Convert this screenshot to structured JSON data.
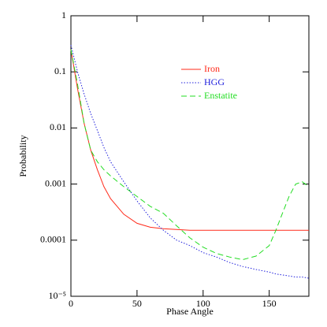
{
  "chart_data": {
    "type": "line",
    "x_label": "Phase Angle",
    "y_label": "Probability",
    "x": [
      0,
      5,
      10,
      15,
      20,
      25,
      30,
      40,
      50,
      60,
      70,
      80,
      90,
      100,
      110,
      120,
      130,
      140,
      150,
      155,
      160,
      165,
      170,
      175,
      180
    ],
    "series": [
      {
        "name": "Iron",
        "color": "#ff2a1a",
        "dash": "solid",
        "values": [
          0.25,
          0.05,
          0.012,
          0.004,
          0.0018,
          0.0009,
          0.00055,
          0.00029,
          0.0002,
          0.00017,
          0.00016,
          0.000155,
          0.00015,
          0.00015,
          0.00015,
          0.00015,
          0.00015,
          0.00015,
          0.00015,
          0.00015,
          0.00015,
          0.00015,
          0.00015,
          0.00015,
          0.00015
        ]
      },
      {
        "name": "HGG",
        "color": "#2222dd",
        "dash": "dotted",
        "values": [
          0.3,
          0.1,
          0.04,
          0.018,
          0.009,
          0.0045,
          0.0025,
          0.0011,
          0.0005,
          0.00025,
          0.00015,
          0.0001,
          8e-05,
          6e-05,
          5e-05,
          4e-05,
          3.4e-05,
          3e-05,
          2.7e-05,
          2.5e-05,
          2.4e-05,
          2.3e-05,
          2.2e-05,
          2.2e-05,
          2.1e-05
        ]
      },
      {
        "name": "Enstatite",
        "color": "#22dd22",
        "dash": "dashed",
        "values": [
          0.25,
          0.06,
          0.012,
          0.004,
          0.0025,
          0.0018,
          0.0014,
          0.0009,
          0.0006,
          0.0004,
          0.0003,
          0.00018,
          0.00011,
          7.5e-05,
          5.8e-05,
          5e-05,
          4.5e-05,
          5.2e-05,
          8e-05,
          0.00015,
          0.0003,
          0.0006,
          0.001,
          0.0011,
          0.0009
        ]
      }
    ],
    "xlim": [
      0,
      180
    ],
    "xticks": [
      0,
      50,
      100,
      150
    ],
    "ylim": [
      1e-05,
      1
    ],
    "y_log": true,
    "yticks": [
      1,
      0.1,
      0.01,
      0.001,
      0.0001,
      {
        "value": 1e-05,
        "label": "10⁻⁵"
      }
    ],
    "legend": "upper right"
  }
}
